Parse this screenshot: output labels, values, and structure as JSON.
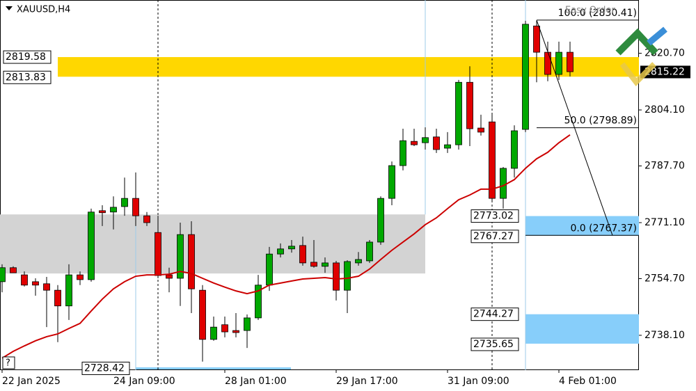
{
  "chart_data": {
    "type": "candlestick",
    "title": "XAUUSD,H4",
    "watermark": "Easy Order",
    "help": "?",
    "ylim": [
      2727.9,
      2836.3
    ],
    "yticks": [
      {
        "value": 2820.7,
        "label": "2820.70"
      },
      {
        "value": 2804.1,
        "label": "2804.10"
      },
      {
        "value": 2787.7,
        "label": "2787.70"
      },
      {
        "value": 2771.1,
        "label": "2771.10"
      },
      {
        "value": 2754.7,
        "label": "2754.70"
      },
      {
        "value": 2738.1,
        "label": "2738.10"
      }
    ],
    "xticks": [
      {
        "value": 0,
        "label": "22 Jan 2025"
      },
      {
        "value": 10,
        "label": "24 Jan 09:00"
      },
      {
        "value": 20,
        "label": "28 Jan 01:00"
      },
      {
        "value": 30,
        "label": "29 Jan 17:00"
      },
      {
        "value": 40,
        "label": "31 Jan 09:00"
      },
      {
        "value": 50,
        "label": "4 Feb 01:00"
      }
    ],
    "up_color": "#00a800",
    "down_color": "#e00000",
    "series": {
      "open": [
        2753.8,
        2757.9,
        2755.8,
        2753.8,
        2753.2,
        2751.3,
        2746.7,
        2755.8,
        2754.4,
        2774.6,
        2774.2,
        2775.8,
        2778.2,
        2773.1,
        2768.2,
        2755.8,
        2754.8,
        2767.6,
        2751.3,
        2736.9,
        2741.2,
        2739.5,
        2739.5,
        2743.2,
        2752.8,
        2761.9,
        2763.4,
        2764.4,
        2759.5,
        2758.3,
        2759.3,
        2751.3,
        2759.3,
        2759.9,
        2765.4,
        2778.2,
        2787.8,
        2794.9,
        2794.5,
        2796.2,
        2792.9,
        2793.9,
        2812.2,
        2798.8,
        2800.6,
        2778.2,
        2787.0,
        2798.4,
        2828.7,
        2821.0,
        2814.5,
        2821.0
      ],
      "high": [
        2758.9,
        2758.3,
        2756.8,
        2754.8,
        2755.2,
        2752.8,
        2758.9,
        2756.8,
        2775.2,
        2776.2,
        2778.8,
        2784.3,
        2785.8,
        2774.2,
        2773.1,
        2757.9,
        2771.1,
        2771.5,
        2752.8,
        2743.6,
        2743.6,
        2744.6,
        2744.2,
        2755.8,
        2764.0,
        2765.0,
        2766.0,
        2767.0,
        2766.0,
        2760.9,
        2759.9,
        2760.1,
        2762.5,
        2766.0,
        2778.8,
        2789.0,
        2798.6,
        2798.6,
        2799.0,
        2798.6,
        2797.6,
        2812.9,
        2816.9,
        2802.7,
        2802.7,
        2787.4,
        2799.6,
        2830.2,
        2830.2,
        2824.1,
        2824.1,
        2824.1
      ],
      "low": [
        2750.7,
        2757.4,
        2752.4,
        2749.7,
        2740.5,
        2736.1,
        2742.6,
        2752.8,
        2753.8,
        2770.1,
        2769.1,
        2773.1,
        2770.1,
        2770.1,
        2754.8,
        2750.7,
        2746.7,
        2744.6,
        2730.4,
        2736.5,
        2737.5,
        2737.5,
        2734.4,
        2742.6,
        2751.1,
        2760.9,
        2762.3,
        2758.5,
        2757.9,
        2756.4,
        2748.3,
        2744.6,
        2758.5,
        2759.3,
        2764.6,
        2776.2,
        2786.4,
        2793.5,
        2792.5,
        2791.5,
        2791.5,
        2792.5,
        2793.5,
        2796.6,
        2777.2,
        2775.2,
        2784.3,
        2797.6,
        2812.2,
        2812.5,
        2812.9,
        2813.9
      ],
      "close": [
        2757.9,
        2756.4,
        2752.8,
        2752.8,
        2751.3,
        2746.7,
        2755.8,
        2754.4,
        2774.2,
        2774.0,
        2775.6,
        2778.2,
        2773.1,
        2771.1,
        2755.6,
        2754.8,
        2767.6,
        2751.7,
        2736.9,
        2740.5,
        2739.1,
        2738.9,
        2743.2,
        2752.8,
        2761.9,
        2763.4,
        2764.2,
        2759.3,
        2758.3,
        2759.3,
        2751.3,
        2759.7,
        2760.3,
        2765.4,
        2778.2,
        2787.8,
        2795.1,
        2793.9,
        2796.0,
        2792.5,
        2793.9,
        2812.2,
        2798.6,
        2797.6,
        2778.2,
        2787.0,
        2798.0,
        2829.2,
        2821.0,
        2814.5,
        2821.0,
        2815.3
      ]
    },
    "ma": {
      "color": "#cc0000",
      "values": [
        2731.4,
        2733.4,
        2735.0,
        2736.5,
        2737.7,
        2738.5,
        2740.1,
        2741.6,
        2745.2,
        2748.7,
        2751.7,
        2753.8,
        2755.4,
        2755.8,
        2755.8,
        2756.0,
        2756.8,
        2756.2,
        2754.8,
        2753.4,
        2752.2,
        2751.1,
        2750.3,
        2751.1,
        2752.8,
        2753.4,
        2754.0,
        2754.6,
        2754.8,
        2755.0,
        2754.6,
        2754.8,
        2755.4,
        2757.5,
        2760.3,
        2763.0,
        2765.4,
        2767.8,
        2770.5,
        2772.5,
        2775.2,
        2777.8,
        2779.2,
        2780.9,
        2780.9,
        2781.9,
        2783.7,
        2787.0,
        2789.8,
        2791.7,
        2794.5,
        2796.8
      ]
    },
    "gray_zone": {
      "color": "#d3d3d3",
      "top": 2773.5,
      "bottom": 2756.2
    },
    "yellow_zone": {
      "color": "#ffd700",
      "top": 2819.58,
      "bottom": 2813.83
    },
    "blue_zones": [
      {
        "color": "#87cefa",
        "top": 2773.02,
        "bottom": 2767.27
      },
      {
        "color": "#87cefa",
        "top": 2744.27,
        "bottom": 2735.65
      }
    ],
    "bottom_level": 2728.42,
    "current_price": 2815.22,
    "fib_levels": [
      {
        "value": 2830.41,
        "label": "100.0 (2830.41)"
      },
      {
        "value": 2798.89,
        "label": "50.0 (2798.89)"
      },
      {
        "value": 2767.37,
        "label": "0.0 (2767.37)"
      }
    ]
  }
}
